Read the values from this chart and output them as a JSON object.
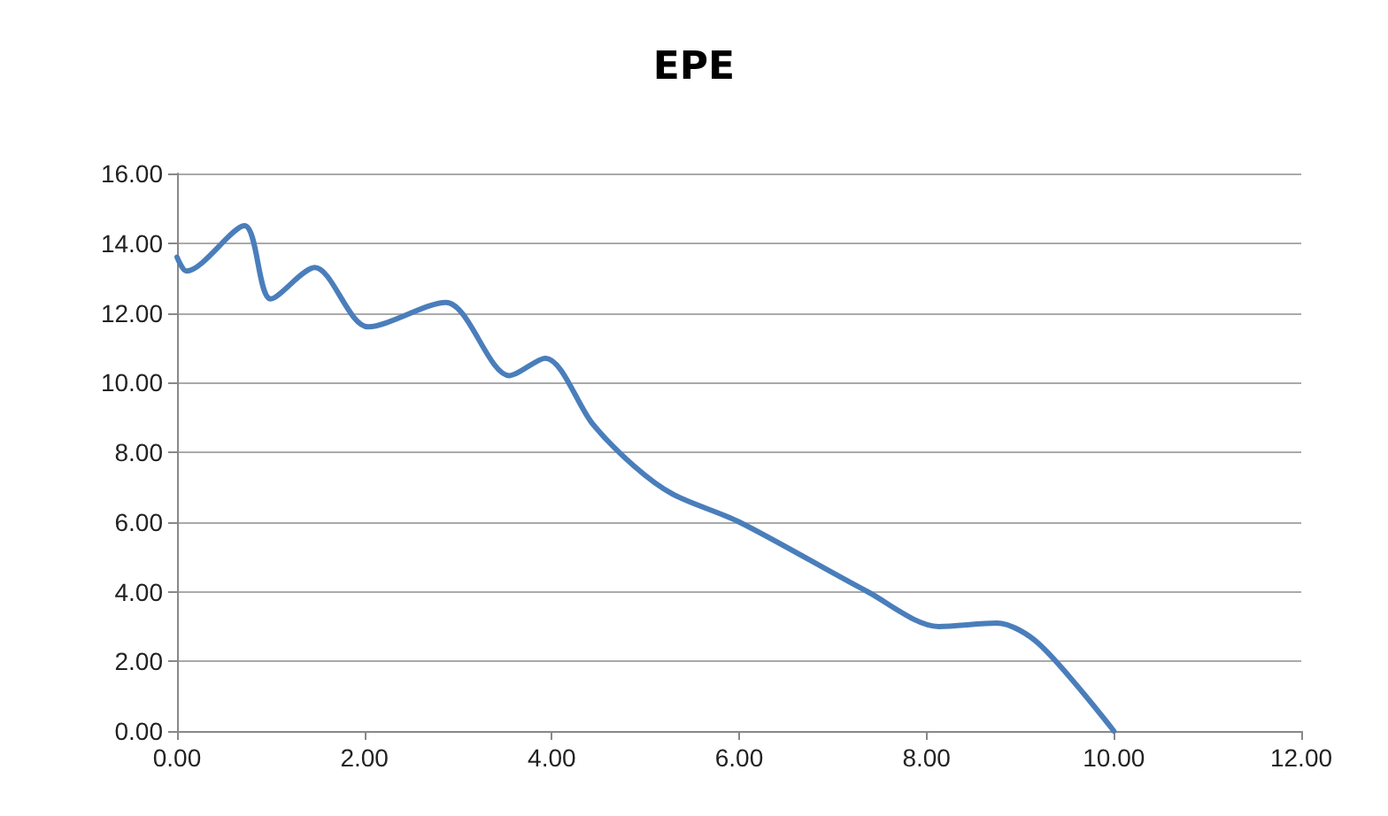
{
  "chart_data": {
    "type": "line",
    "title": "EPE",
    "x": [
      0,
      0.1,
      0.72,
      1.0,
      1.47,
      2.04,
      2.87,
      3.55,
      3.93,
      4.44,
      4.88,
      5.29,
      6.0,
      7.37,
      8.13,
      8.75,
      9.2,
      10.0
    ],
    "series": [
      {
        "color": "#4a7ebb",
        "values": [
          13.6,
          13.2,
          14.5,
          12.4,
          13.3,
          11.6,
          12.3,
          10.2,
          10.7,
          8.8,
          7.6,
          6.8,
          6.0,
          4.0,
          3.0,
          3.1,
          2.5,
          0
        ]
      }
    ],
    "xlim": [
      0,
      12
    ],
    "xticks": [
      {
        "value": 0,
        "label": "0.00"
      },
      {
        "value": 2,
        "label": "2.00"
      },
      {
        "value": 4,
        "label": "4.00"
      },
      {
        "value": 6,
        "label": "6.00"
      },
      {
        "value": 8,
        "label": "8.00"
      },
      {
        "value": 10,
        "label": "10.00"
      },
      {
        "value": 12,
        "label": "12.00"
      }
    ],
    "ylim": [
      0,
      16
    ],
    "yticks": [
      {
        "value": 0,
        "label": "0.00"
      },
      {
        "value": 2,
        "label": "2.00"
      },
      {
        "value": 4,
        "label": "4.00"
      },
      {
        "value": 6,
        "label": "6.00"
      },
      {
        "value": 8,
        "label": "8.00"
      },
      {
        "value": 10,
        "label": "10.00"
      },
      {
        "value": 12,
        "label": "12.00"
      },
      {
        "value": 14,
        "label": "14.00"
      },
      {
        "value": 16,
        "label": "16.00"
      }
    ],
    "grid": "y",
    "marker": "none",
    "line_style": "solid"
  }
}
